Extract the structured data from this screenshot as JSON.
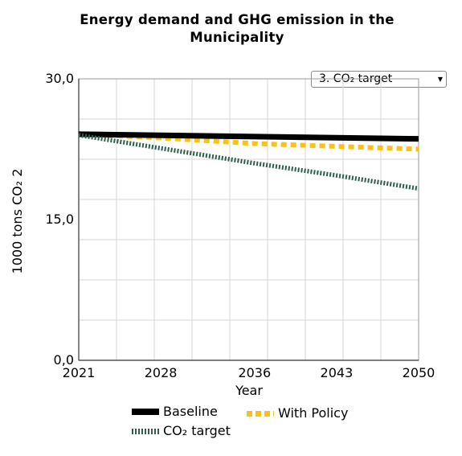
{
  "title": "Energy demand and GHG emission in the Municipality",
  "selector": {
    "selected": "3. CO₂ target",
    "arrow_icon": "triangle-down"
  },
  "chart_data": {
    "type": "line",
    "title": "Energy demand and GHG emission in the Municipality",
    "xlabel": "Year",
    "ylabel": "1000 tons CO₂ 2",
    "ylim": [
      0,
      30
    ],
    "xlim": [
      2021,
      2050
    ],
    "x_tick_labels": [
      "2021",
      "2028",
      "2036",
      "2043",
      "2050"
    ],
    "y_tick_labels": [
      "0,0",
      "15,0",
      "30,0"
    ],
    "grid": true,
    "legend_position": "bottom",
    "series": [
      {
        "name": "Baseline",
        "color": "#000000",
        "style": "solid",
        "x": [
          2021,
          2050
        ],
        "values": [
          24.1,
          23.6
        ]
      },
      {
        "name": "With Policy",
        "color": "#f7c21c",
        "style": "dashed",
        "x": [
          2021,
          2028,
          2036,
          2043,
          2050
        ],
        "values": [
          24.1,
          23.7,
          23.1,
          22.8,
          22.5
        ]
      },
      {
        "name": "CO₂ target",
        "color": "#2f5d50",
        "style": "dotted",
        "x": [
          2021,
          2028,
          2036,
          2043,
          2050
        ],
        "values": [
          24.0,
          22.6,
          21.0,
          19.7,
          18.3
        ]
      }
    ]
  }
}
